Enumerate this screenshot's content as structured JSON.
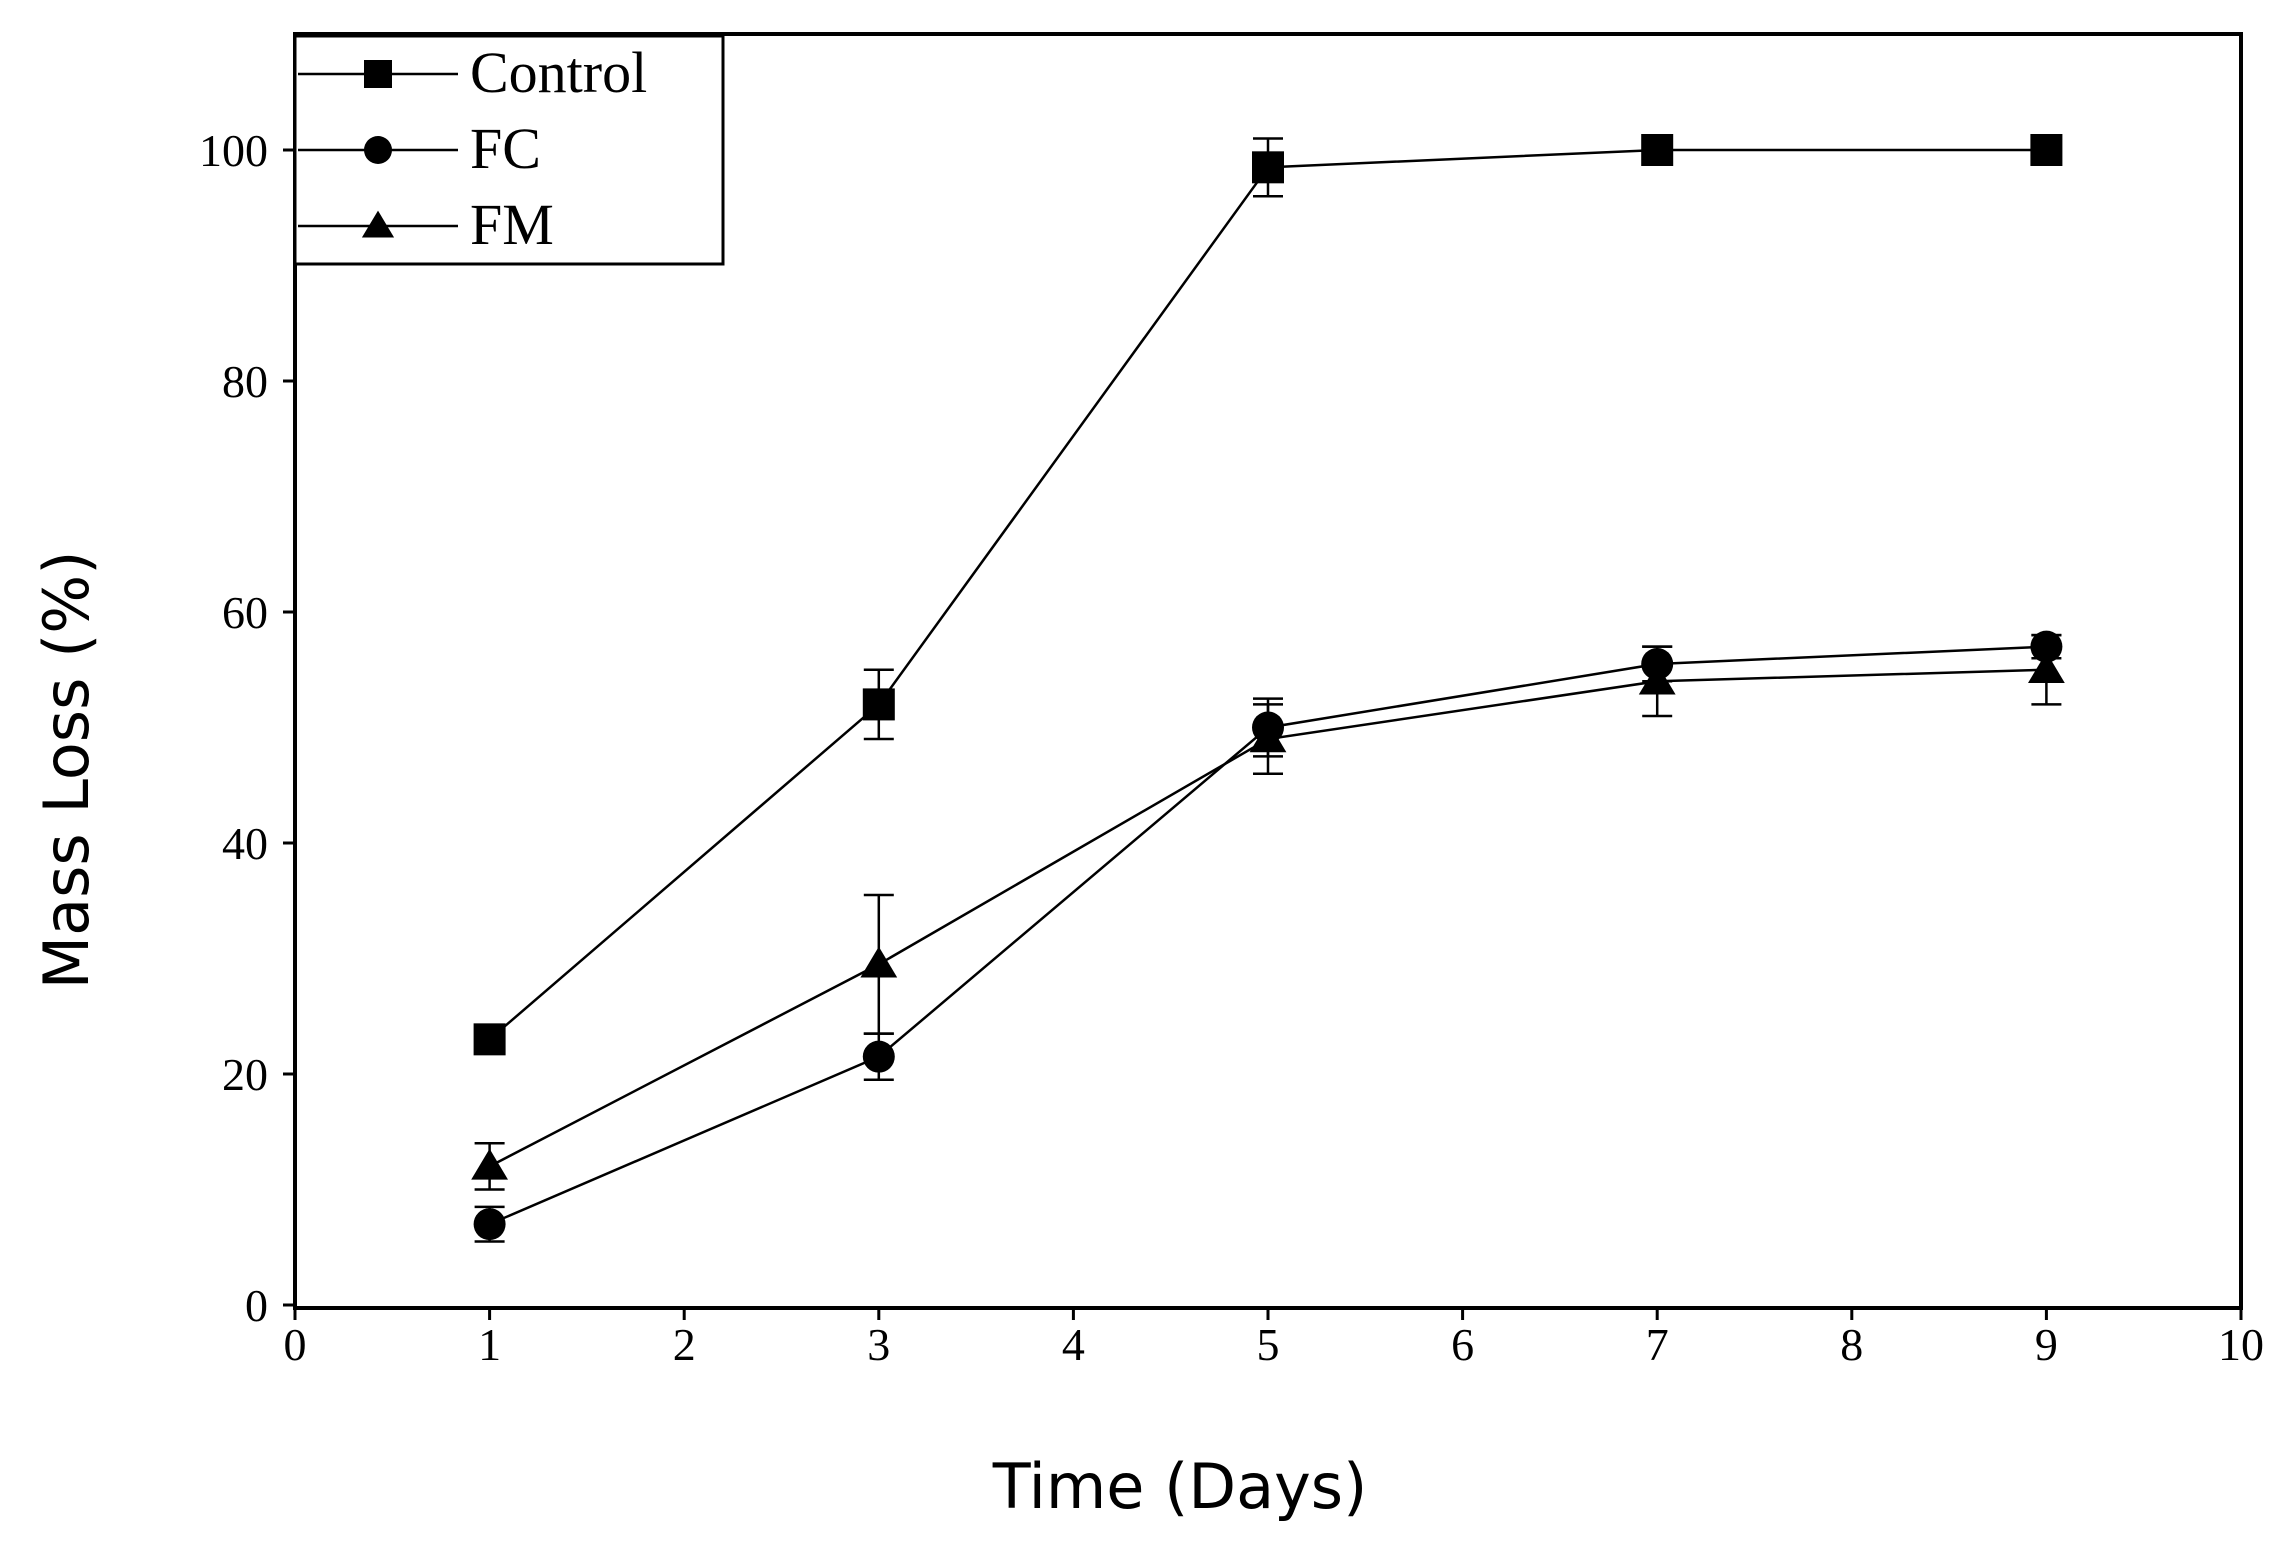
{
  "chart_data": {
    "type": "line",
    "title": "",
    "xlabel": "Time (Days)",
    "ylabel": "Mass Loss (%)",
    "xlim": [
      0,
      10
    ],
    "ylim": [
      0,
      110
    ],
    "xticks": [
      0,
      1,
      2,
      3,
      4,
      5,
      6,
      7,
      8,
      9,
      10
    ],
    "xtick_labels": [
      "0",
      "1",
      "2",
      "3",
      "4",
      "5",
      "6",
      "7",
      "8",
      "9",
      "10"
    ],
    "yticks": [
      0,
      20,
      40,
      60,
      80,
      100
    ],
    "ytick_labels": [
      "0",
      "20",
      "40",
      "60",
      "80",
      "100"
    ],
    "grid": false,
    "legend_position": "top-left",
    "x": [
      1,
      3,
      5,
      7,
      9
    ],
    "series": [
      {
        "name": "Control",
        "marker": "square",
        "values": [
          23,
          52,
          98.5,
          100,
          100
        ],
        "errors": [
          0.5,
          3,
          2.5,
          0,
          0
        ]
      },
      {
        "name": "FC",
        "marker": "circle",
        "values": [
          7,
          21.5,
          50,
          55.5,
          57
        ],
        "errors": [
          1.5,
          2,
          2.5,
          1.5,
          1
        ]
      },
      {
        "name": "FM",
        "marker": "triangle",
        "values": [
          12,
          29.5,
          49,
          54,
          55
        ],
        "errors": [
          2,
          6,
          3,
          3,
          3
        ]
      }
    ],
    "colors": {
      "line": "#000000",
      "background": "#ffffff"
    }
  }
}
